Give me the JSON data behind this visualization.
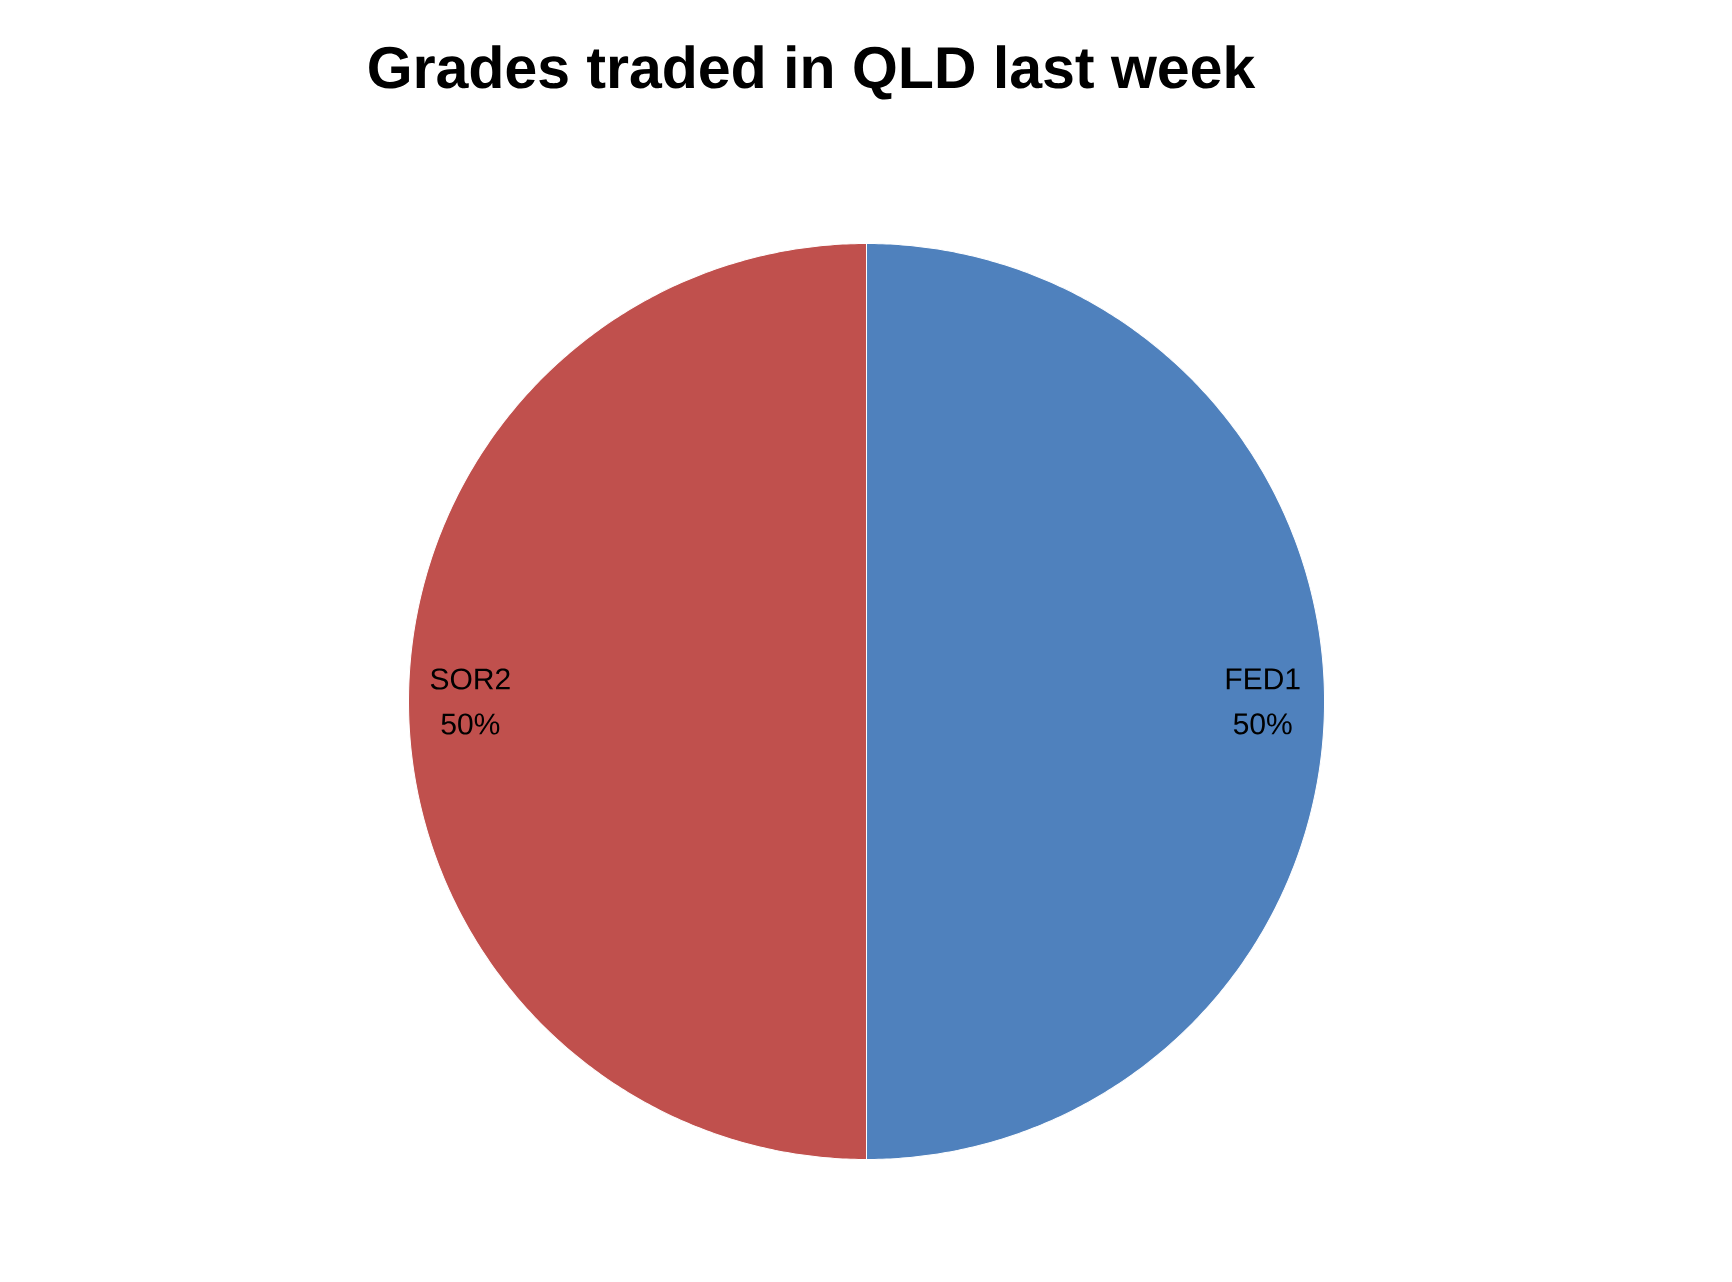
{
  "chart_data": {
    "type": "pie",
    "title": "Grades traded in QLD last week",
    "categories": [
      "FED1",
      "SOR2"
    ],
    "values": [
      50,
      50
    ],
    "colors": [
      "#4f81bd",
      "#c0504d"
    ],
    "value_labels": [
      "50%",
      "50%"
    ]
  }
}
